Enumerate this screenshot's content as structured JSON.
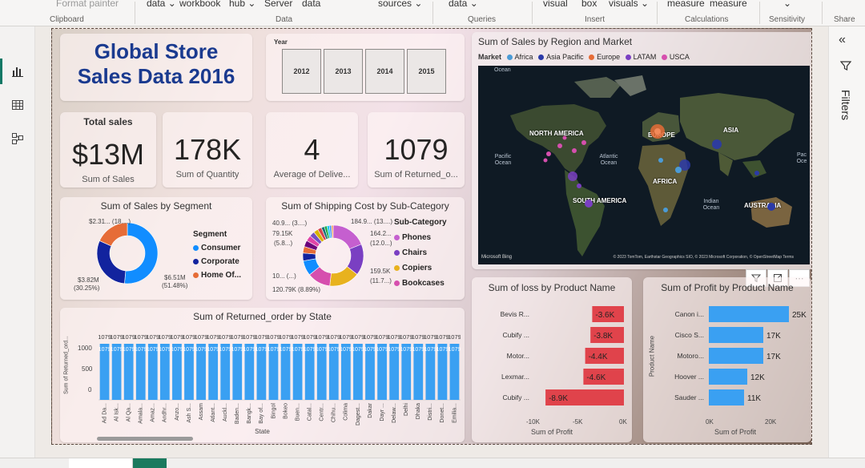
{
  "ribbon": {
    "items": [
      "Format painter",
      "data ⌄",
      "workbook",
      "hub ⌄",
      "Server",
      "data",
      "sources ⌄",
      "data ⌄",
      "visual",
      "box",
      "visuals ⌄",
      "measure",
      "measure",
      "⌄"
    ],
    "groups": [
      "Clipboard",
      "Data",
      "Queries",
      "Insert",
      "Calculations",
      "Sensitivity",
      "Share"
    ]
  },
  "report": {
    "title": "Global Store Sales Data 2016",
    "title_line1": "Global Store",
    "title_line2": "Sales Data 2016",
    "year_slicer": {
      "label": "Year",
      "years": [
        "2012",
        "2013",
        "2014",
        "2015"
      ]
    },
    "kpis": [
      {
        "title": "Total sales",
        "value": "$13M",
        "label": "Sum of Sales"
      },
      {
        "title": "",
        "value": "178K",
        "label": "Sum of Quantity"
      },
      {
        "title": "",
        "value": "4",
        "label": "Average of Delive..."
      },
      {
        "title": "",
        "value": "1079",
        "label": "Sum of Returned_o..."
      }
    ],
    "segment_chart": {
      "title": "Sum of Sales by Segment",
      "legend_title": "Segment",
      "legend": [
        {
          "name": "Consumer",
          "color": "#118dff"
        },
        {
          "name": "Corporate",
          "color": "#12239e"
        },
        {
          "name": "Home Of...",
          "color": "#e66c37"
        }
      ],
      "labels": {
        "top": "$2.31... (18....)",
        "left_value": "$3.82M",
        "left_pct": "(30.25%)",
        "right_value": "$6.51M",
        "right_pct": "(51.48%)"
      }
    },
    "shipping_chart": {
      "title": "Sum of Shipping Cost by Sub-Category",
      "legend_title": "Sub-Category",
      "legend": [
        {
          "name": "Phones",
          "color": "#c55fcf"
        },
        {
          "name": "Chairs",
          "color": "#7a3fc2"
        },
        {
          "name": "Copiers",
          "color": "#e8b21e"
        },
        {
          "name": "Bookcases",
          "color": "#d64fae"
        }
      ],
      "labels": {
        "l1": "40.9... (3....)",
        "l2": "79.15K",
        "l3": "(5.8...)",
        "l4": "10... (...)",
        "l5": "120.79K (8.89%)",
        "r1": "184.9... (13....)",
        "r2": "164.2...",
        "r3": "(12.0...)",
        "r4": "159.5K",
        "r5": "(11.7...)"
      }
    },
    "map_chart": {
      "title": "Sum of Sales by Region and Market",
      "legend_title": "Market",
      "legend": [
        {
          "name": "Africa",
          "color": "#4b9bd6"
        },
        {
          "name": "Asia Pacific",
          "color": "#2b3aa8"
        },
        {
          "name": "Europe",
          "color": "#e66c37"
        },
        {
          "name": "LATAM",
          "color": "#7a3fc2"
        },
        {
          "name": "USCA",
          "color": "#d64fae"
        }
      ],
      "labels": {
        "north_america": "NORTH AMERICA",
        "south_america": "SOUTH AMERICA",
        "europe": "EUROPE",
        "asia": "ASIA",
        "africa": "AFRICA",
        "australia": "AUSTRALIA",
        "pacific_ocean": "Pacific Ocean",
        "atlantic_ocean": "Atlantic Ocean",
        "indian_ocean": "Indian Ocean",
        "ocean_top": "Ocean",
        "pacific_right": "Pac Oce",
        "bing": "Microsoft Bing",
        "attribution": "© 2023 TomTom, Earthstar Geographics SIO, © 2023 Microsoft Corporation, © OpenStreetMap  Terms"
      }
    },
    "state_chart": {
      "title": "Sum of Returned_order by State",
      "xlabel": "State",
      "ylabel": "Sum of Returned_ord...",
      "ylim": [
        0,
        1079
      ],
      "yticks": [
        "1000",
        "500",
        "0"
      ]
    },
    "loss_chart": {
      "title": "Sum of loss by Product Name",
      "xlabel": "Sum of Profit",
      "xticks": [
        "-10K",
        "-5K",
        "0K"
      ],
      "color": "#e0434b"
    },
    "profit_chart": {
      "title": "Sum of Profit by Product Name",
      "xlabel": "Sum of Profit",
      "ylabel": "Product Name",
      "xticks": [
        "0K",
        "20K"
      ],
      "color": "#3aa0f2"
    }
  },
  "filters_pane": {
    "label": "Filters",
    "collapse_icon": "double-chevron-left-icon",
    "filter_icon": "funnel-icon"
  },
  "chart_data": [
    {
      "type": "pie",
      "title": "Sum of Sales by Segment",
      "categories": [
        "Consumer",
        "Corporate",
        "Home Of..."
      ],
      "values": [
        6.51,
        3.82,
        2.31
      ],
      "unit": "$M",
      "percent": [
        51.48,
        30.25,
        18.27
      ]
    },
    {
      "type": "bar",
      "title": "Sum of Returned_order by State",
      "categories": [
        "Ad Da...",
        "Al Isk...",
        "Al Qa...",
        "Amala...",
        "Amaz...",
        "Andhr...",
        "Anzo...",
        "Ash S...",
        "Assam",
        "Atlant...",
        "Auckl...",
        "Baden...",
        "Bangk...",
        "Bay of...",
        "Bingol",
        "Bokeo",
        "Buen...",
        "Catal...",
        "Centr...",
        "Chihu...",
        "Colima",
        "Dagest...",
        "Dakar",
        "Dayr ...",
        "Delaw...",
        "Delhi",
        "Dhaka",
        "Distri...",
        "Donet...",
        "Emilia..."
      ],
      "values": [
        1079,
        1079,
        1079,
        1079,
        1079,
        1079,
        1079,
        1079,
        1079,
        1079,
        1079,
        1079,
        1079,
        1079,
        1079,
        1079,
        1079,
        1079,
        1079,
        1079,
        1079,
        1079,
        1079,
        1079,
        1079,
        1079,
        1079,
        1079,
        1079,
        1079
      ],
      "data_labels": [
        "1079",
        "1079",
        "1079",
        "1079",
        "1079",
        "1079",
        "1079",
        "1079",
        "1079",
        "1079",
        "1079",
        "1079",
        "1079",
        "1079",
        "1079",
        "1079",
        "1079",
        "1079",
        "1079",
        "1079",
        "1079",
        "1079",
        "1079",
        "1079",
        "1079",
        "1079",
        "1079",
        "1079",
        "1079",
        "1079"
      ],
      "xlabel": "State",
      "ylabel": "Sum of Returned_ord...",
      "ylim": [
        0,
        1079
      ],
      "yticks": [
        0,
        500,
        1000
      ]
    },
    {
      "type": "bar",
      "orientation": "horizontal",
      "title": "Sum of loss by Product Name",
      "categories": [
        "Bevis R...",
        "Cubify ...",
        "Motor...",
        "Lexmar...",
        "Cubify ..."
      ],
      "values": [
        -3.6,
        -3.8,
        -4.4,
        -4.6,
        -8.9
      ],
      "data_labels": [
        "-3.6K",
        "-3.8K",
        "-4.4K",
        "-4.6K",
        "-8.9K"
      ],
      "unit": "K",
      "xlabel": "Sum of Profit",
      "xlim": [
        -10,
        0
      ]
    },
    {
      "type": "bar",
      "orientation": "horizontal",
      "title": "Sum of Profit by Product Name",
      "categories": [
        "Canon i...",
        "Cisco S...",
        "Motoro...",
        "Hoover ...",
        "Sauder ..."
      ],
      "values": [
        25,
        17,
        17,
        12,
        11
      ],
      "data_labels": [
        "25K",
        "17K",
        "17K",
        "12K",
        "11K"
      ],
      "unit": "K",
      "xlabel": "Sum of Profit",
      "ylabel": "Product Name",
      "xlim": [
        0,
        25
      ]
    }
  ]
}
